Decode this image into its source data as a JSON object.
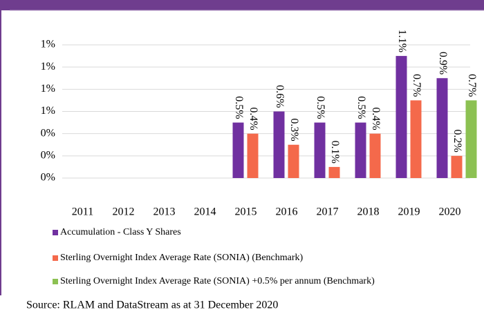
{
  "chart_data": {
    "type": "bar",
    "categories": [
      "2011",
      "2012",
      "2013",
      "2014",
      "2015",
      "2016",
      "2017",
      "2018",
      "2019",
      "2020"
    ],
    "series": [
      {
        "name": "Accumulation - Class Y Shares",
        "color": "#7030a0",
        "values": [
          null,
          null,
          null,
          null,
          0.5,
          0.6,
          0.5,
          0.5,
          1.1,
          0.9
        ],
        "value_labels": [
          null,
          null,
          null,
          null,
          "0.5%",
          "0.6%",
          "0.5%",
          "0.5%",
          "1.1%",
          "0.9%"
        ]
      },
      {
        "name": "Sterling Overnight Index Average Rate (SONIA) (Benchmark)",
        "color": "#f4694b",
        "values": [
          null,
          null,
          null,
          null,
          0.4,
          0.3,
          0.1,
          0.4,
          0.7,
          0.2
        ],
        "value_labels": [
          null,
          null,
          null,
          null,
          "0.4%",
          "0.3%",
          "0.1%",
          "0.4%",
          "0.7%",
          "0.2%"
        ]
      },
      {
        "name": "Sterling Overnight Index Average Rate (SONIA) +0.5% per annum (Benchmark)",
        "color": "#8cc152",
        "values": [
          null,
          null,
          null,
          null,
          null,
          null,
          null,
          null,
          null,
          0.7
        ],
        "value_labels": [
          null,
          null,
          null,
          null,
          null,
          null,
          null,
          null,
          null,
          "0.7%"
        ]
      }
    ],
    "ylim": [
      0,
      1.2
    ],
    "yticks": [
      {
        "value": 0,
        "label": "0%"
      },
      {
        "value": 0.2,
        "label": "0%"
      },
      {
        "value": 0.4,
        "label": "0%"
      },
      {
        "value": 0.6,
        "label": "1%"
      },
      {
        "value": 0.8,
        "label": "1%"
      },
      {
        "value": 1.0,
        "label": "1%"
      },
      {
        "value": 1.2,
        "label": "1%"
      }
    ],
    "grid": true,
    "source": "Source: RLAM and DataStream as at 31 December 2020"
  }
}
